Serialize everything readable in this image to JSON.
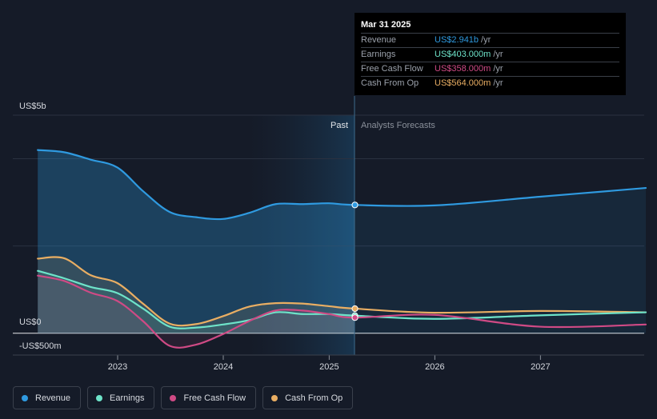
{
  "chart_data": {
    "type": "line",
    "x_ticks": [
      "2023",
      "2024",
      "2025",
      "2026",
      "2027"
    ],
    "y_labels": {
      "top": "US$5b",
      "zero": "US$0",
      "bottom": "-US$500m"
    },
    "ylim": [
      -500,
      5000
    ],
    "grid": true,
    "regions": {
      "past_label": "Past",
      "forecast_label": "Analysts Forecasts"
    },
    "series": [
      {
        "name": "Revenue",
        "color": "#2f9ae0",
        "x": [
          "2022-03-31",
          "2022-06-30",
          "2022-09-30",
          "2022-12-31",
          "2023-03-31",
          "2023-06-30",
          "2023-09-30",
          "2023-12-31",
          "2024-03-31",
          "2024-06-30",
          "2024-09-30",
          "2024-12-31",
          "2025-03-31",
          "2025-12-31",
          "2026-12-31",
          "2027-12-31"
        ],
        "values": [
          4200,
          4150,
          3980,
          3800,
          3250,
          2780,
          2660,
          2620,
          2760,
          2960,
          2960,
          2980,
          2941,
          2930,
          3130,
          3330
        ]
      },
      {
        "name": "Earnings",
        "color": "#6ee3c9",
        "x": [
          "2022-03-31",
          "2022-06-30",
          "2022-09-30",
          "2022-12-31",
          "2023-03-31",
          "2023-06-30",
          "2023-09-30",
          "2023-12-31",
          "2024-03-31",
          "2024-06-30",
          "2024-09-30",
          "2024-12-31",
          "2025-03-31",
          "2025-12-31",
          "2026-12-31",
          "2027-12-31"
        ],
        "values": [
          1430,
          1260,
          1060,
          920,
          560,
          150,
          130,
          200,
          300,
          480,
          440,
          440,
          403,
          330,
          410,
          480
        ]
      },
      {
        "name": "Free Cash Flow",
        "color": "#cf4a85",
        "x": [
          "2022-03-31",
          "2022-06-30",
          "2022-09-30",
          "2022-12-31",
          "2023-03-31",
          "2023-06-30",
          "2023-09-30",
          "2023-12-31",
          "2024-03-31",
          "2024-06-30",
          "2024-09-30",
          "2024-12-31",
          "2025-03-31",
          "2025-12-31",
          "2026-12-31",
          "2027-12-31"
        ],
        "values": [
          1320,
          1200,
          930,
          740,
          270,
          -290,
          -260,
          -20,
          280,
          520,
          520,
          440,
          358,
          420,
          150,
          200
        ]
      },
      {
        "name": "Cash From Op",
        "color": "#e9ae63",
        "x": [
          "2022-03-31",
          "2022-06-30",
          "2022-09-30",
          "2022-12-31",
          "2023-03-31",
          "2023-06-30",
          "2023-09-30",
          "2023-12-31",
          "2024-03-31",
          "2024-06-30",
          "2024-09-30",
          "2024-12-31",
          "2025-03-31",
          "2025-12-31",
          "2026-12-31",
          "2027-12-31"
        ],
        "values": [
          1710,
          1720,
          1330,
          1150,
          670,
          220,
          210,
          390,
          610,
          690,
          680,
          620,
          564,
          470,
          510,
          480
        ]
      }
    ]
  },
  "tooltip": {
    "date": "Mar 31 2025",
    "rows": [
      {
        "label": "Revenue",
        "value": "US$2.941b",
        "unit": "/yr",
        "color": "#2f9ae0"
      },
      {
        "label": "Earnings",
        "value": "US$403.000m",
        "unit": "/yr",
        "color": "#6ee3c9"
      },
      {
        "label": "Free Cash Flow",
        "value": "US$358.000m",
        "unit": "/yr",
        "color": "#cf4a85"
      },
      {
        "label": "Cash From Op",
        "value": "US$564.000m",
        "unit": "/yr",
        "color": "#e9ae63"
      }
    ]
  },
  "legend": [
    {
      "label": "Revenue",
      "color": "#2f9ae0"
    },
    {
      "label": "Earnings",
      "color": "#6ee3c9"
    },
    {
      "label": "Free Cash Flow",
      "color": "#cf4a85"
    },
    {
      "label": "Cash From Op",
      "color": "#e9ae63"
    }
  ]
}
